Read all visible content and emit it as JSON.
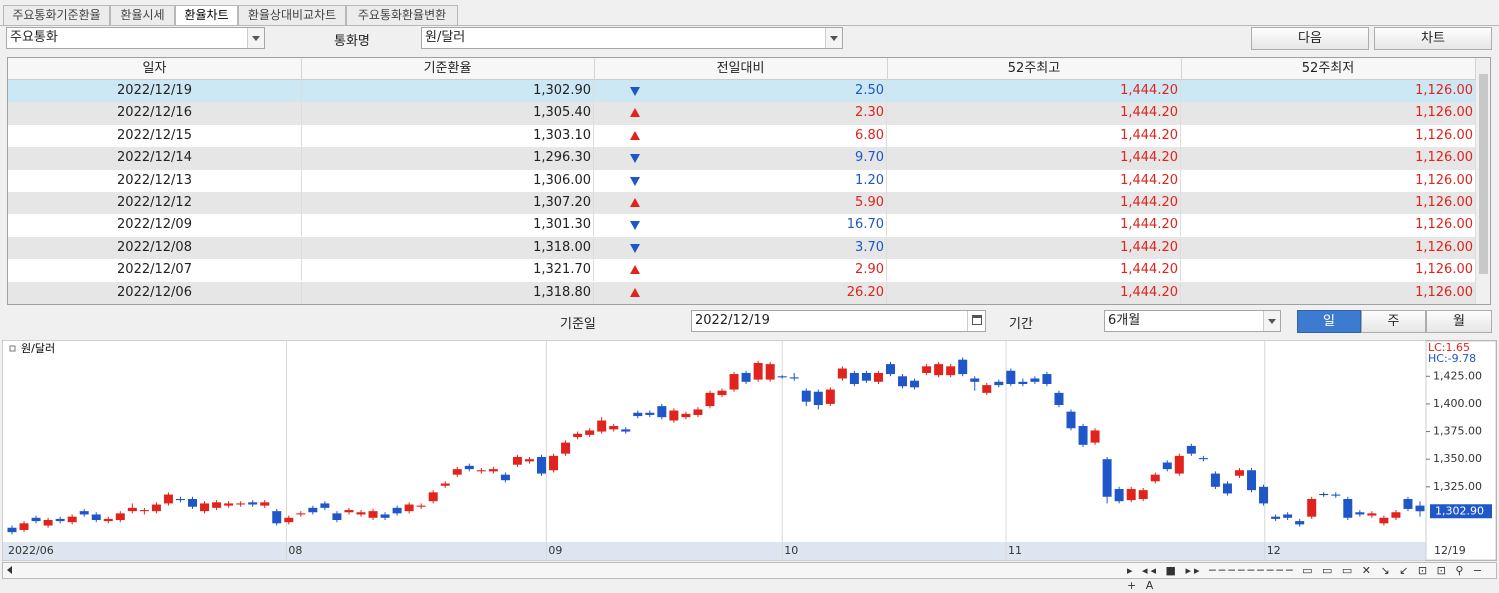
{
  "tabs": [
    "주요통화기준환율",
    "환율시세",
    "환율차트",
    "환율상대비교차트",
    "주요통화환율변환"
  ],
  "selected_tab": 2,
  "toolbar": {
    "group": "주요통화",
    "currency_label": "통화명",
    "currency": "원/달러",
    "buttons": [
      "다음",
      "차트"
    ]
  },
  "table": {
    "headers": [
      "일자",
      "기준환율",
      "전일대비",
      "52주최고",
      "52주최저"
    ],
    "rows": [
      [
        "2022/12/19",
        "1,302.90",
        "2.50",
        "1,444.20",
        "1,126.00"
      ],
      [
        "2022/12/16",
        "1,305.40",
        "2.30",
        "1,444.20",
        "1,126.00"
      ],
      [
        "2022/12/15",
        "1,303.10",
        "6.80",
        "1,444.20",
        "1,126.00"
      ],
      [
        "2022/12/14",
        "1,296.30",
        "9.70",
        "1,444.20",
        "1,126.00"
      ],
      [
        "2022/12/13",
        "1,306.00",
        "1.20",
        "1,444.20",
        "1,126.00"
      ],
      [
        "2022/12/12",
        "1,307.20",
        "5.90",
        "1,444.20",
        "1,126.00"
      ],
      [
        "2022/12/09",
        "1,301.30",
        "16.70",
        "1,444.20",
        "1,126.00"
      ],
      [
        "2022/12/08",
        "1,318.00",
        "3.70",
        "1,444.20",
        "1,126.00"
      ],
      [
        "2022/12/07",
        "1,321.70",
        "2.90",
        "1,444.20",
        "1,126.00"
      ],
      [
        "2022/12/06",
        "1,318.80",
        "26.20",
        "1,444.20",
        "1,126.00"
      ]
    ],
    "directions": [
      "down",
      "up",
      "up",
      "down",
      "down",
      "up",
      "down",
      "down",
      "up",
      "up"
    ],
    "colors": {
      "up": "#e0231c",
      "down": "#1f56c8"
    }
  },
  "controls": {
    "date_label": "기준일",
    "date": "2022/12/19",
    "period_label": "기간",
    "period": "6개월",
    "period_buttons": [
      "일",
      "주",
      "월"
    ],
    "selected_period": 0
  },
  "chart_data": {
    "type": "candlestick",
    "title": "원/달러",
    "indicators": [
      "LC:1.65",
      "HC:-9.78"
    ],
    "indicator_colors": [
      "#e0231c",
      "#1f56c8"
    ],
    "up_color": "#e0231c",
    "down_color": "#1f56c8",
    "ylim": [
      1276,
      1456
    ],
    "yticks": [
      {
        "value": 1325,
        "label": "1,325.00"
      },
      {
        "value": 1350,
        "label": "1,350.00"
      },
      {
        "value": 1375,
        "label": "1,375.00"
      },
      {
        "value": 1400,
        "label": "1,400.00"
      },
      {
        "value": 1425,
        "label": "1,425.00"
      }
    ],
    "xticks": [
      {
        "value": 0,
        "label": "2022/06"
      },
      {
        "value": 23.3,
        "label": "08"
      },
      {
        "value": 44.9,
        "label": "09"
      },
      {
        "value": 64.5,
        "label": "10"
      },
      {
        "value": 83.1,
        "label": "11"
      },
      {
        "value": 104.6,
        "label": "12"
      }
    ],
    "last_date": "12/19",
    "last_value_label": "1,302.90",
    "ohlc": [
      [
        1288,
        1290,
        1282,
        1284
      ],
      [
        1286,
        1294,
        1284,
        1292
      ],
      [
        1297,
        1299,
        1292,
        1294
      ],
      [
        1290,
        1297,
        1288,
        1295
      ],
      [
        1296,
        1298,
        1292,
        1294
      ],
      [
        1293,
        1300,
        1291,
        1298
      ],
      [
        1303,
        1305,
        1298,
        1300
      ],
      [
        1300,
        1302,
        1293,
        1295
      ],
      [
        1294,
        1298,
        1292,
        1296
      ],
      [
        1295,
        1303,
        1293,
        1301
      ],
      [
        1303,
        1310,
        1301,
        1306
      ],
      [
        1303,
        1306,
        1300,
        1304
      ],
      [
        1303,
        1311,
        1301,
        1309
      ],
      [
        1310,
        1320,
        1308,
        1318
      ],
      [
        1314,
        1316,
        1311,
        1313
      ],
      [
        1314,
        1316,
        1305,
        1307
      ],
      [
        1303,
        1312,
        1301,
        1310
      ],
      [
        1306,
        1313,
        1304,
        1311
      ],
      [
        1308,
        1312,
        1306,
        1310
      ],
      [
        1309,
        1312,
        1307,
        1310
      ],
      [
        1311,
        1313,
        1307,
        1309
      ],
      [
        1308,
        1313,
        1306,
        1311
      ],
      [
        1303,
        1305,
        1290,
        1292
      ],
      [
        1293,
        1299,
        1291,
        1297
      ],
      [
        1300,
        1303,
        1298,
        1301
      ],
      [
        1306,
        1308,
        1300,
        1302
      ],
      [
        1310,
        1312,
        1304,
        1306
      ],
      [
        1301,
        1303,
        1293,
        1295
      ],
      [
        1302,
        1306,
        1300,
        1304
      ],
      [
        1300,
        1304,
        1298,
        1302
      ],
      [
        1297,
        1305,
        1295,
        1303
      ],
      [
        1300,
        1302,
        1295,
        1297
      ],
      [
        1306,
        1308,
        1299,
        1301
      ],
      [
        1303,
        1311,
        1301,
        1309
      ],
      [
        1307,
        1310,
        1305,
        1308
      ],
      [
        1312,
        1322,
        1310,
        1320
      ],
      [
        1326,
        1330,
        1324,
        1328
      ],
      [
        1336,
        1343,
        1334,
        1341
      ],
      [
        1344,
        1346,
        1339,
        1341
      ],
      [
        1339,
        1342,
        1337,
        1340
      ],
      [
        1339,
        1343,
        1337,
        1341
      ],
      [
        1336,
        1338,
        1329,
        1331
      ],
      [
        1345,
        1354,
        1343,
        1352
      ],
      [
        1348,
        1352,
        1346,
        1350
      ],
      [
        1352,
        1354,
        1335,
        1337
      ],
      [
        1340,
        1355,
        1338,
        1353
      ],
      [
        1355,
        1367,
        1353,
        1365
      ],
      [
        1370,
        1375,
        1368,
        1373
      ],
      [
        1372,
        1378,
        1370,
        1376
      ],
      [
        1375,
        1388,
        1373,
        1385
      ],
      [
        1377,
        1382,
        1375,
        1380
      ],
      [
        1377,
        1379,
        1373,
        1375
      ],
      [
        1392,
        1394,
        1387,
        1389
      ],
      [
        1392,
        1394,
        1388,
        1390
      ],
      [
        1398,
        1400,
        1386,
        1388
      ],
      [
        1385,
        1396,
        1383,
        1394
      ],
      [
        1388,
        1393,
        1386,
        1391
      ],
      [
        1390,
        1397,
        1388,
        1395
      ],
      [
        1398,
        1412,
        1396,
        1410
      ],
      [
        1408,
        1414,
        1406,
        1412
      ],
      [
        1413,
        1429,
        1411,
        1427
      ],
      [
        1428,
        1430,
        1418,
        1420
      ],
      [
        1422,
        1439,
        1420,
        1437
      ],
      [
        1422,
        1438,
        1420,
        1436
      ],
      [
        1425,
        1426,
        1423,
        1424
      ],
      [
        1424,
        1428,
        1421,
        1423
      ],
      [
        1412,
        1414,
        1398,
        1402
      ],
      [
        1411,
        1413,
        1395,
        1399
      ],
      [
        1400,
        1415,
        1398,
        1413
      ],
      [
        1423,
        1434,
        1421,
        1432
      ],
      [
        1428,
        1430,
        1416,
        1418
      ],
      [
        1428,
        1430,
        1419,
        1421
      ],
      [
        1420,
        1430,
        1418,
        1428
      ],
      [
        1436,
        1438,
        1425,
        1427
      ],
      [
        1425,
        1427,
        1414,
        1416
      ],
      [
        1421,
        1423,
        1413,
        1415
      ],
      [
        1428,
        1436,
        1426,
        1434
      ],
      [
        1426,
        1438,
        1424,
        1436
      ],
      [
        1426,
        1436,
        1424,
        1434
      ],
      [
        1440,
        1442,
        1425,
        1427
      ],
      [
        1423,
        1425,
        1412,
        1420
      ],
      [
        1410,
        1419,
        1408,
        1417
      ],
      [
        1420,
        1422,
        1415,
        1417
      ],
      [
        1430,
        1432,
        1416,
        1418
      ],
      [
        1420,
        1423,
        1416,
        1418
      ],
      [
        1423,
        1425,
        1418,
        1420
      ],
      [
        1427,
        1429,
        1416,
        1418
      ],
      [
        1410,
        1412,
        1397,
        1399
      ],
      [
        1393,
        1395,
        1376,
        1378
      ],
      [
        1380,
        1382,
        1361,
        1363
      ],
      [
        1365,
        1378,
        1363,
        1376
      ],
      [
        1350,
        1352,
        1310,
        1316
      ],
      [
        1323,
        1325,
        1310,
        1312
      ],
      [
        1313,
        1325,
        1311,
        1323
      ],
      [
        1314,
        1324,
        1312,
        1322
      ],
      [
        1330,
        1338,
        1328,
        1336
      ],
      [
        1347,
        1349,
        1339,
        1341
      ],
      [
        1337,
        1355,
        1335,
        1353
      ],
      [
        1362,
        1364,
        1353,
        1355
      ],
      [
        1351,
        1353,
        1348,
        1350
      ],
      [
        1337,
        1339,
        1323,
        1325
      ],
      [
        1328,
        1330,
        1317,
        1319
      ],
      [
        1335,
        1342,
        1333,
        1340
      ],
      [
        1340,
        1342,
        1320,
        1322
      ],
      [
        1325,
        1327,
        1308,
        1310
      ],
      [
        1298,
        1300,
        1294,
        1296
      ],
      [
        1300,
        1302,
        1295,
        1297
      ],
      [
        1294,
        1296,
        1289,
        1291
      ],
      [
        1298,
        1316,
        1296,
        1314
      ],
      [
        1318,
        1320,
        1316,
        1318
      ],
      [
        1318,
        1320,
        1315,
        1317
      ],
      [
        1314,
        1316,
        1295,
        1297
      ],
      [
        1302,
        1304,
        1298,
        1300
      ],
      [
        1299,
        1303,
        1297,
        1301
      ],
      [
        1292,
        1299,
        1290,
        1297
      ],
      [
        1297,
        1304,
        1295,
        1302
      ],
      [
        1314,
        1316,
        1303,
        1305
      ],
      [
        1308,
        1312,
        1298,
        1302.9
      ]
    ]
  }
}
